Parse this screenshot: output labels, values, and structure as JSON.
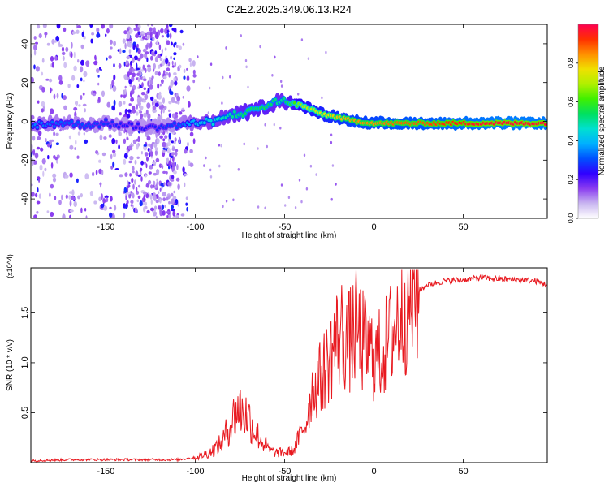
{
  "title": "C2E2.2025.349.06.13.R24",
  "chart_data": [
    {
      "type": "heatmap",
      "title": "C2E2.2025.349.06.13.R24",
      "xlabel": "Height of straight line (km)",
      "ylabel": "Frequency (Hz)",
      "xlim": [
        -192,
        97
      ],
      "ylim": [
        -50,
        50
      ],
      "xticks": [
        -150,
        -100,
        -50,
        0,
        50
      ],
      "xtick_labels": [
        "-150",
        "-100",
        "-50",
        "0",
        "50"
      ],
      "yticks": [
        -40,
        -20,
        0,
        20,
        40
      ],
      "ytick_labels": [
        "-40",
        "-20",
        "0",
        "20",
        "40"
      ],
      "colorbar": {
        "label": "Normalized spectral amplitude",
        "range": [
          0.0,
          1.0
        ],
        "ticks": [
          0.0,
          0.2,
          0.4,
          0.6,
          0.8
        ],
        "tick_labels": [
          "0.0",
          "0.2",
          "0.4",
          "0.6",
          "0.8"
        ],
        "colors": [
          "#ffffff",
          "#c9b6f0",
          "#8a3cf0",
          "#3000ff",
          "#0050ff",
          "#00b0ff",
          "#00e0d0",
          "#00e060",
          "#40f000",
          "#b0f000",
          "#f0e000",
          "#ff9000",
          "#ff3000",
          "#ff0050"
        ]
      },
      "ridge": {
        "x": [
          -190,
          -175,
          -160,
          -150,
          -140,
          -125,
          -110,
          -100,
          -90,
          -80,
          -70,
          -60,
          -52,
          -45,
          -40,
          -30,
          -20,
          -10,
          0,
          10,
          30,
          50,
          70,
          85,
          95
        ],
        "freq": [
          -2,
          -1,
          -2,
          -1,
          -2,
          -3,
          -2,
          -1,
          0,
          3,
          5,
          8,
          11,
          9,
          8,
          4,
          2,
          0,
          -1,
          -1,
          -1,
          -1,
          -1,
          -1,
          -1
        ],
        "amplitude": [
          0.35,
          0.32,
          0.3,
          0.28,
          0.25,
          0.25,
          0.3,
          0.4,
          0.45,
          0.5,
          0.55,
          0.55,
          0.5,
          0.6,
          0.7,
          0.75,
          0.8,
          0.85,
          0.85,
          0.88,
          0.9,
          0.95,
          0.98,
          0.98,
          0.97
        ]
      }
    },
    {
      "type": "line",
      "xlabel": "Height of straight line (km)",
      "ylabel": "SNR (10 * v/v)",
      "y_multiplier": "(x10^4)",
      "xlim": [
        -192,
        97
      ],
      "ylim": [
        0,
        1.95
      ],
      "xticks": [
        -150,
        -100,
        -50,
        0,
        50
      ],
      "xtick_labels": [
        "-150",
        "-100",
        "-50",
        "0",
        "50"
      ],
      "yticks": [
        0.5,
        1.0,
        1.5
      ],
      "ytick_labels": [
        "0.5",
        "1.0",
        "1.5"
      ],
      "color": "#e8191f",
      "series": [
        {
          "name": "SNR",
          "x": [
            -192,
            -170,
            -150,
            -130,
            -110,
            -100,
            -92,
            -85,
            -80,
            -76,
            -73,
            -70,
            -66,
            -62,
            -58,
            -55,
            -50,
            -45,
            -42,
            -38,
            -35,
            -30,
            -26,
            -22,
            -18,
            -14,
            -10,
            -6,
            -2,
            2,
            6,
            10,
            15,
            20,
            25,
            30,
            40,
            50,
            60,
            70,
            80,
            90,
            97
          ],
          "y": [
            0.02,
            0.03,
            0.03,
            0.03,
            0.03,
            0.05,
            0.1,
            0.2,
            0.4,
            0.55,
            0.5,
            0.45,
            0.3,
            0.2,
            0.12,
            0.1,
            0.1,
            0.12,
            0.25,
            0.4,
            0.7,
            0.85,
            1.0,
            1.2,
            1.3,
            1.2,
            1.35,
            1.2,
            1.1,
            1.05,
            1.15,
            1.3,
            1.5,
            1.6,
            1.72,
            1.78,
            1.82,
            1.83,
            1.85,
            1.84,
            1.83,
            1.82,
            1.78
          ]
        }
      ]
    }
  ]
}
